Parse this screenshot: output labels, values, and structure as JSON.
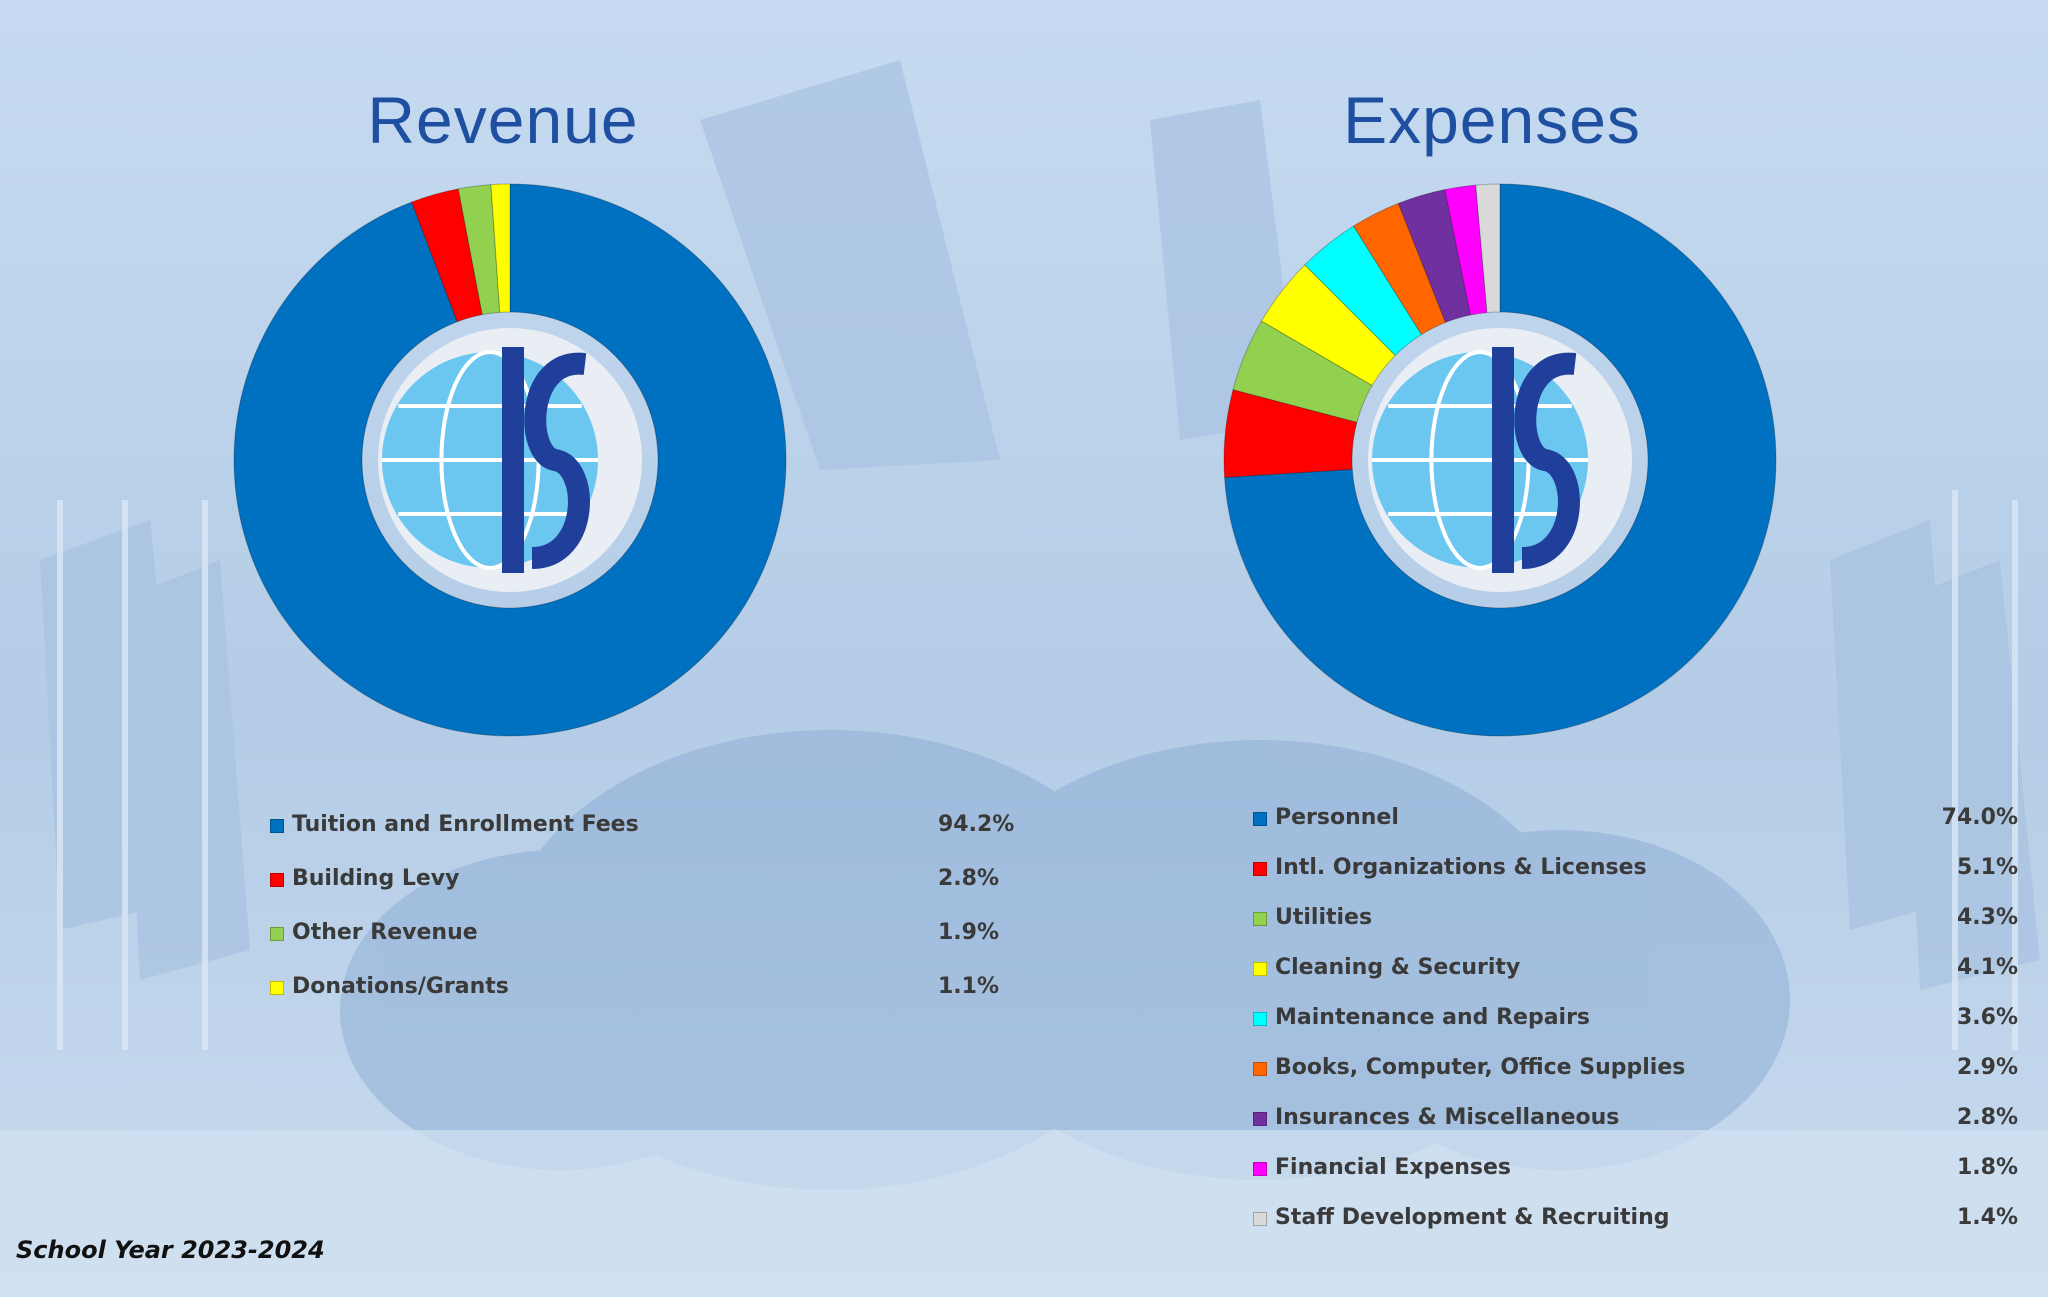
{
  "footer": {
    "school_year": "School Year 2023-2024"
  },
  "colors": {
    "background": "#c3d6ec",
    "title": "#1f4fa0",
    "logo_globe": "#6cc7f0",
    "logo_letters": "#1f3f9a"
  },
  "logo": {
    "name": "school-crest-logo",
    "icon": "globe-is-logo"
  },
  "chart_data": [
    {
      "type": "pie",
      "title": "Revenue",
      "style": "donut",
      "series": [
        {
          "name": "Tuition and Enrollment Fees",
          "value": 94.2,
          "label": "94.2%",
          "color": "#0070c0"
        },
        {
          "name": "Building Levy",
          "value": 2.8,
          "label": "2.8%",
          "color": "#ff0000"
        },
        {
          "name": "Other Revenue",
          "value": 1.9,
          "label": "1.9%",
          "color": "#92d050"
        },
        {
          "name": "Donations/Grants",
          "value": 1.1,
          "label": "1.1%",
          "color": "#ffff00"
        }
      ]
    },
    {
      "type": "pie",
      "title": "Expenses",
      "style": "donut",
      "series": [
        {
          "name": "Personnel",
          "value": 74.0,
          "label": "74.0%",
          "color": "#0070c0"
        },
        {
          "name": "Intl. Organizations & Licenses",
          "value": 5.1,
          "label": "5.1%",
          "color": "#ff0000"
        },
        {
          "name": "Utilities",
          "value": 4.3,
          "label": "4.3%",
          "color": "#92d050"
        },
        {
          "name": "Cleaning & Security",
          "value": 4.1,
          "label": "4.1%",
          "color": "#ffff00"
        },
        {
          "name": "Maintenance and Repairs",
          "value": 3.6,
          "label": "3.6%",
          "color": "#00ffff"
        },
        {
          "name": "Books, Computer, Office Supplies",
          "value": 2.9,
          "label": "2.9%",
          "color": "#ff6600"
        },
        {
          "name": "Insurances & Miscellaneous",
          "value": 2.8,
          "label": "2.8%",
          "color": "#7030a0"
        },
        {
          "name": "Financial Expenses",
          "value": 1.8,
          "label": "1.8%",
          "color": "#ff00ff"
        },
        {
          "name": "Staff Development & Recruiting",
          "value": 1.4,
          "label": "1.4%",
          "color": "#d9d9d9"
        }
      ]
    }
  ]
}
